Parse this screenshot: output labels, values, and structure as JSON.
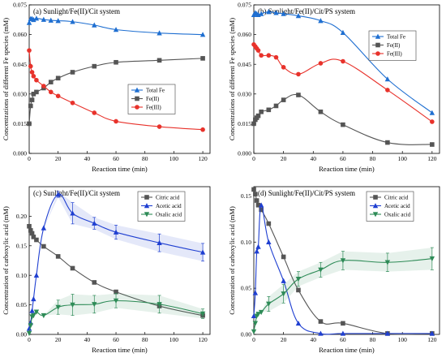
{
  "chart_data": [
    {
      "type": "line",
      "title": "(a) Sunlight/Fe(II)/Cit system",
      "xlabel": "Reaction time (min)",
      "ylabel": "Concentrations of different Fe species (mM)",
      "xlim": [
        0,
        125
      ],
      "ylim": [
        0,
        0.075
      ],
      "xticks": [
        0,
        20,
        40,
        60,
        80,
        100,
        120
      ],
      "yticks": [
        0,
        0.015,
        0.03,
        0.045,
        0.06,
        0.075
      ],
      "ytick_labels": [
        "0.000",
        "0.015",
        "0.030",
        "0.045",
        "0.060",
        "0.075"
      ],
      "legend_position": "center-right",
      "series": [
        {
          "name": "Total Fe",
          "color": "#1f6fd1",
          "marker": "triangle-up",
          "x": [
            0,
            1,
            2,
            3,
            5,
            10,
            15,
            20,
            30,
            45,
            60,
            90,
            120
          ],
          "y": [
            0.066,
            0.068,
            0.068,
            0.0675,
            0.0682,
            0.0676,
            0.0672,
            0.067,
            0.0665,
            0.0648,
            0.0625,
            0.0608,
            0.06
          ]
        },
        {
          "name": "Fe(II)",
          "color": "#555555",
          "marker": "square",
          "x": [
            0,
            1,
            2,
            3,
            5,
            10,
            15,
            20,
            30,
            45,
            60,
            90,
            120
          ],
          "y": [
            0.015,
            0.024,
            0.027,
            0.03,
            0.031,
            0.033,
            0.036,
            0.038,
            0.041,
            0.044,
            0.046,
            0.047,
            0.048
          ]
        },
        {
          "name": "Fe(III)",
          "color": "#e8322b",
          "marker": "circle",
          "x": [
            0,
            1,
            2,
            3,
            5,
            10,
            15,
            20,
            30,
            45,
            60,
            90,
            120
          ],
          "y": [
            0.052,
            0.044,
            0.041,
            0.039,
            0.037,
            0.034,
            0.031,
            0.029,
            0.0255,
            0.0205,
            0.0162,
            0.0135,
            0.012
          ]
        }
      ]
    },
    {
      "type": "line",
      "title": "(b) Sunlight/Fe(II)/Cit/PS system",
      "xlabel": "Reaction time (min)",
      "ylabel": "Concentrations of different Fe species (mM)",
      "xlim": [
        0,
        125
      ],
      "ylim": [
        0,
        0.075
      ],
      "xticks": [
        0,
        20,
        40,
        60,
        80,
        100,
        120
      ],
      "yticks": [
        0,
        0.015,
        0.03,
        0.045,
        0.06,
        0.075
      ],
      "ytick_labels": [
        "0.000",
        "0.015",
        "0.030",
        "0.045",
        "0.060",
        "0.075"
      ],
      "legend_position": "top-right",
      "series": [
        {
          "name": "Total Fe",
          "color": "#1f6fd1",
          "marker": "triangle-up",
          "x": [
            0,
            1,
            2,
            3,
            5,
            10,
            15,
            20,
            30,
            45,
            60,
            90,
            120
          ],
          "y": [
            0.07,
            0.071,
            0.0705,
            0.07,
            0.0705,
            0.0715,
            0.071,
            0.0705,
            0.0695,
            0.067,
            0.061,
            0.0375,
            0.0205
          ]
        },
        {
          "name": "Fe(II)",
          "color": "#555555",
          "marker": "square",
          "x": [
            0,
            1,
            2,
            3,
            5,
            10,
            15,
            20,
            30,
            45,
            60,
            90,
            120
          ],
          "y": [
            0.015,
            0.017,
            0.018,
            0.019,
            0.021,
            0.022,
            0.024,
            0.027,
            0.0295,
            0.021,
            0.0145,
            0.0055,
            0.0045
          ]
        },
        {
          "name": "Fe(III)",
          "color": "#e8322b",
          "marker": "circle",
          "x": [
            0,
            1,
            2,
            3,
            5,
            10,
            15,
            20,
            30,
            45,
            60,
            90,
            120
          ],
          "y": [
            0.055,
            0.054,
            0.053,
            0.052,
            0.0495,
            0.0495,
            0.0485,
            0.0435,
            0.04,
            0.0455,
            0.0465,
            0.032,
            0.016
          ]
        }
      ]
    },
    {
      "type": "line",
      "title": "(c) Sunlight/Fe(II)/Cit system",
      "xlabel": "Reaction time (min)",
      "ylabel": "Concentration of carboxylic acid (mM)",
      "xlim": [
        0,
        125
      ],
      "ylim": [
        0,
        0.25
      ],
      "xticks": [
        0,
        20,
        40,
        60,
        80,
        100,
        120
      ],
      "yticks": [
        0,
        0.05,
        0.1,
        0.15,
        0.2
      ],
      "ytick_labels": [
        "0.00",
        "0.05",
        "0.10",
        "0.15",
        "0.20"
      ],
      "legend_position": "top-right",
      "series": [
        {
          "name": "Citric acid",
          "color": "#555555",
          "marker": "square",
          "x": [
            0,
            1,
            2,
            3,
            5,
            10,
            20,
            30,
            45,
            60,
            90,
            120
          ],
          "y": [
            0.183,
            0.176,
            0.171,
            0.165,
            0.16,
            0.149,
            0.132,
            0.112,
            0.088,
            0.072,
            0.048,
            0.032
          ]
        },
        {
          "name": "Acetic acid",
          "color": "#1f3fd1",
          "marker": "triangle-up",
          "x": [
            0,
            1,
            2,
            3,
            5,
            10,
            20,
            30,
            45,
            60,
            90,
            120
          ],
          "y": [
            0.01,
            0.02,
            0.04,
            0.06,
            0.1,
            0.18,
            0.237,
            0.205,
            0.188,
            0.173,
            0.155,
            0.139
          ],
          "err": [
            0,
            0,
            0,
            0,
            0,
            0,
            0.005,
            0.018,
            0.01,
            0.012,
            0.015,
            0.015
          ]
        },
        {
          "name": "Oxalic acid",
          "color": "#2e8b57",
          "marker": "triangle-down",
          "x": [
            0,
            1,
            2,
            3,
            5,
            10,
            20,
            30,
            45,
            60,
            90,
            120
          ],
          "y": [
            0.002,
            0.015,
            0.03,
            0.032,
            0.038,
            0.032,
            0.046,
            0.05,
            0.051,
            0.057,
            0.051,
            0.035
          ],
          "err": [
            0,
            0,
            0,
            0,
            0,
            0,
            0.012,
            0.018,
            0.015,
            0.012,
            0.015,
            0.008
          ]
        }
      ]
    },
    {
      "type": "line",
      "title": "(d) Sunlight/Fe(II)/Cit/PS system",
      "xlabel": "Reaction time (min)",
      "ylabel": "Concentration of carboxylic acid (mM)",
      "xlim": [
        0,
        125
      ],
      "ylim": [
        0,
        0.16
      ],
      "xticks": [
        0,
        20,
        40,
        60,
        80,
        100,
        120
      ],
      "yticks": [
        0,
        0.05,
        0.1,
        0.15
      ],
      "ytick_labels": [
        "0.00",
        "0.05",
        "0.10",
        "0.15"
      ],
      "legend_position": "top-right",
      "series": [
        {
          "name": "Citric acid",
          "color": "#555555",
          "marker": "square",
          "x": [
            0,
            1,
            2,
            3,
            5,
            10,
            20,
            30,
            45,
            60,
            90,
            120
          ],
          "y": [
            0.157,
            0.152,
            0.145,
            0.14,
            0.135,
            0.12,
            0.084,
            0.048,
            0.014,
            0.012,
            0.001,
            0.001
          ]
        },
        {
          "name": "Acetic acid",
          "color": "#1f3fd1",
          "marker": "triangle-up",
          "x": [
            0,
            1,
            2,
            3,
            5,
            10,
            20,
            30,
            45,
            60,
            90,
            120
          ],
          "y": [
            0.02,
            0.045,
            0.09,
            0.095,
            0.14,
            0.1,
            0.058,
            0.012,
            0.001,
            0.001,
            0.001,
            0.001
          ]
        },
        {
          "name": "Oxalic acid",
          "color": "#2e8b57",
          "marker": "triangle-down",
          "x": [
            0,
            1,
            2,
            3,
            5,
            10,
            20,
            30,
            45,
            60,
            90,
            120
          ],
          "y": [
            0.003,
            0.012,
            0.02,
            0.022,
            0.024,
            0.033,
            0.044,
            0.06,
            0.07,
            0.08,
            0.078,
            0.082
          ],
          "err": [
            0,
            0,
            0,
            0,
            0,
            0.008,
            0.01,
            0.008,
            0.008,
            0.01,
            0.01,
            0.012
          ]
        }
      ]
    }
  ]
}
